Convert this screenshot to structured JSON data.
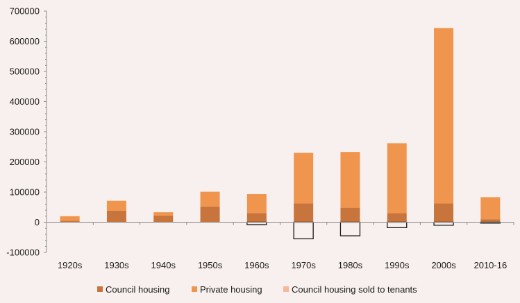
{
  "chart_data": {
    "type": "bar",
    "categories": [
      "1920s",
      "1930s",
      "1940s",
      "1950s",
      "1960s",
      "1970s",
      "1980s",
      "1990s",
      "2000s",
      "2010-16"
    ],
    "series": [
      {
        "name": "Council housing",
        "values": [
          5000,
          38000,
          22000,
          52000,
          30000,
          62000,
          48000,
          30000,
          62000,
          10000
        ]
      },
      {
        "name": "Private housing",
        "values": [
          15000,
          33000,
          11000,
          49000,
          63000,
          168000,
          185000,
          232000,
          582000,
          73000
        ]
      },
      {
        "name": "Council housing sold to tenants",
        "values": [
          0,
          0,
          0,
          0,
          -8000,
          -55000,
          -45000,
          -18000,
          -10000,
          -3000
        ]
      }
    ],
    "ylim": [
      -100000,
      700000
    ],
    "yticks": [
      -100000,
      0,
      100000,
      200000,
      300000,
      400000,
      500000,
      600000,
      700000
    ],
    "title": "",
    "xlabel": "",
    "ylabel": "",
    "legend_position": "bottom",
    "colors": {
      "council": "#c8743d",
      "private": "#f0954e",
      "sold": "#f6b89c",
      "sold_outline": "#1a1a1a",
      "axis": "#8c8c8c",
      "background": "#f8f0ee"
    }
  }
}
